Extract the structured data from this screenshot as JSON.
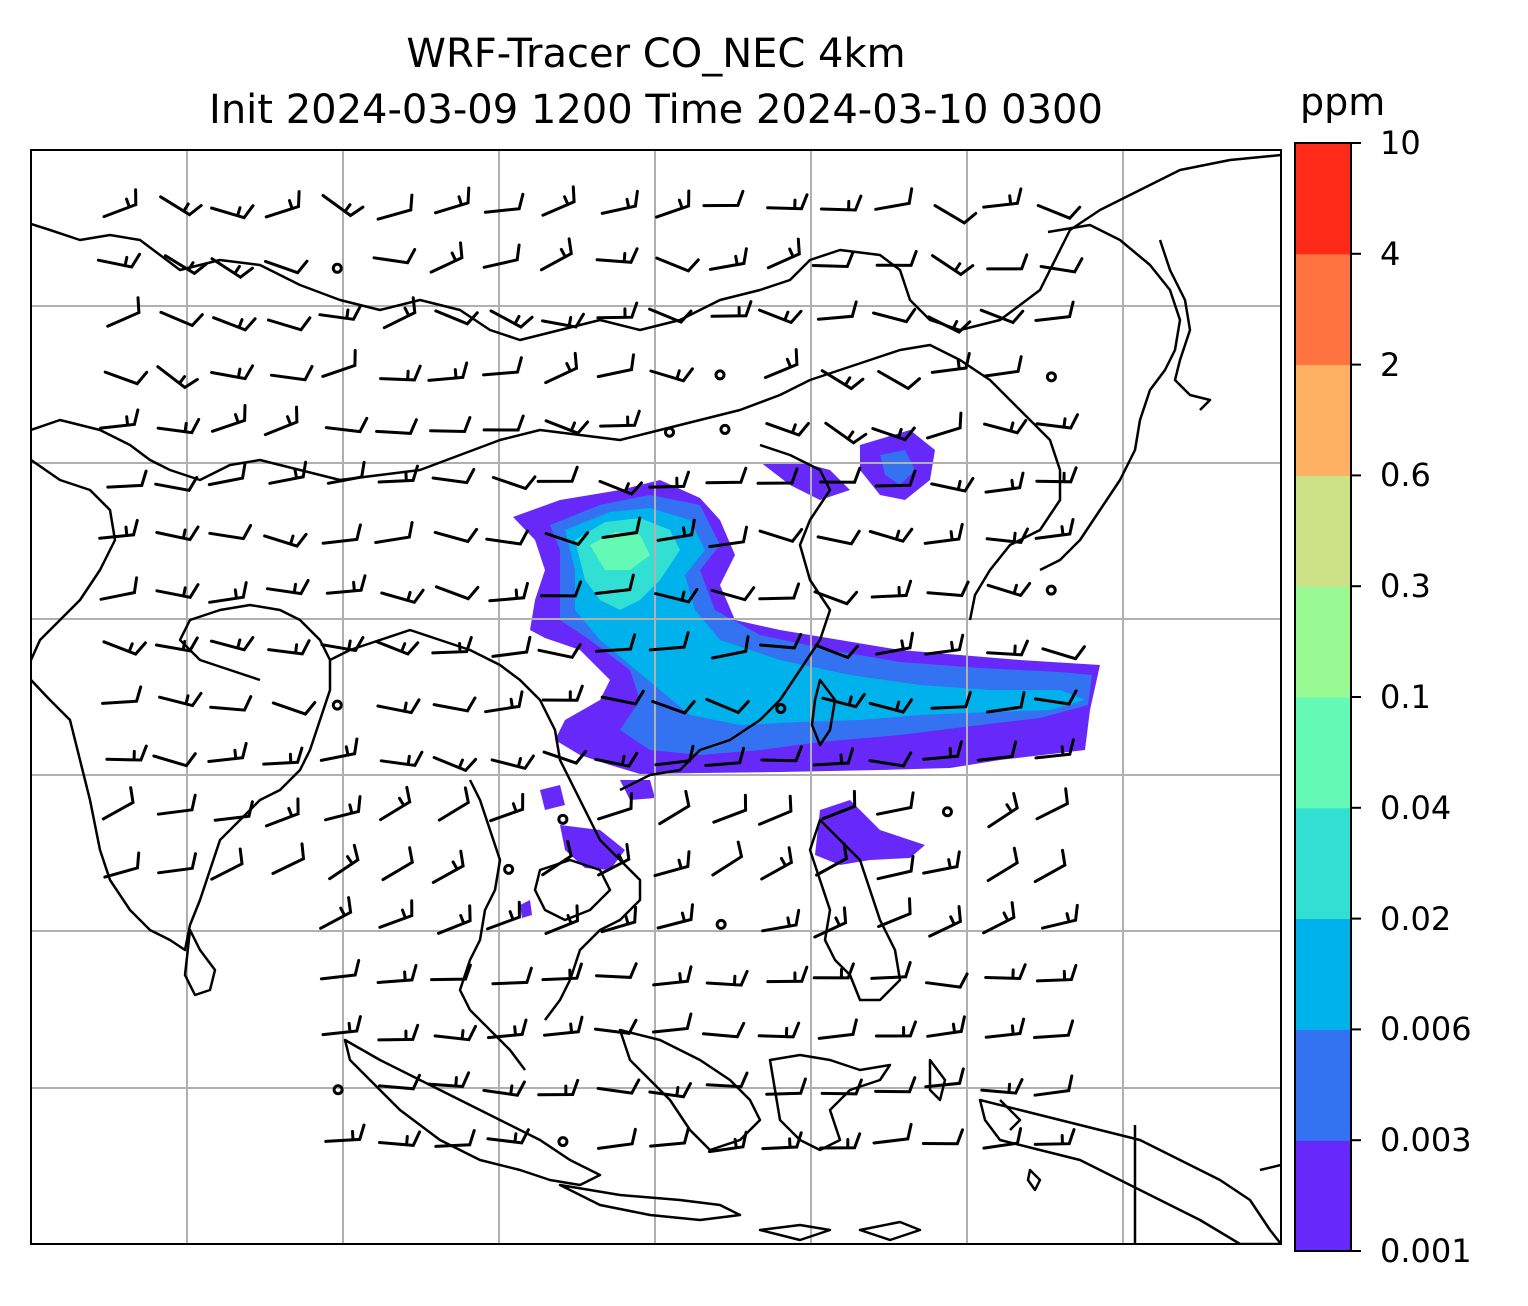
{
  "title": {
    "line1": "WRF-Tracer CO_NEC 4km",
    "line2": "Init 2024-03-09 1200 Time 2024-03-10 0300"
  },
  "colorbar": {
    "unit": "ppm",
    "levels": [
      "0.001",
      "0.003",
      "0.006",
      "0.02",
      "0.04",
      "0.1",
      "0.3",
      "0.6",
      "2",
      "4",
      "10"
    ],
    "colors": [
      "#6629fa",
      "#3373f2",
      "#00b2ec",
      "#32e0d3",
      "#65f9b6",
      "#99fa94",
      "#cde286",
      "#feb163",
      "#fe7340",
      "#ff2b18"
    ]
  },
  "map": {
    "gridlines": true,
    "coastline_color": "#000000",
    "grid_color": "#b0b0b0",
    "wind_barbs": true
  }
}
